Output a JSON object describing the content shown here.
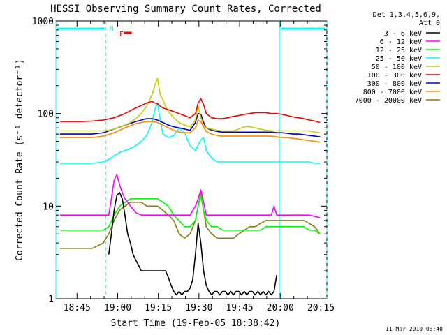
{
  "chart_data": {
    "type": "line",
    "title": "HESSI Observing Summary Count Rates, Corrected",
    "xlabel": "Start Time (19-Feb-05 18:38:42)",
    "ylabel": "Corrected Count Rate (s⁻¹ detector⁻¹)",
    "y_scale": "log",
    "ylim": [
      1,
      1000
    ],
    "xlim_minutes": [
      -1.5,
      98.5
    ],
    "x_ticks": [
      {
        "label": "18:45",
        "t": 6.3
      },
      {
        "label": "19:00",
        "t": 21.3
      },
      {
        "label": "19:15",
        "t": 36.3
      },
      {
        "label": "19:30",
        "t": 51.3
      },
      {
        "label": "19:45",
        "t": 66.3
      },
      {
        "label": "20:00",
        "t": 81.3
      },
      {
        "label": "20:15",
        "t": 96.3
      }
    ],
    "y_ticks": [
      {
        "label": "1",
        "v": 1
      },
      {
        "label": "10",
        "v": 10
      },
      {
        "label": "100",
        "v": 100
      },
      {
        "label": "1000",
        "v": 1000
      }
    ],
    "legend": {
      "header_lines": [
        "Det 1,3,4,5,6,9,",
        "Att 0"
      ],
      "placement": "right"
    },
    "series": [
      {
        "name": "3 - 6 keV",
        "color": "#000000",
        "x": [
          18,
          19,
          20,
          21,
          22,
          23,
          24,
          25,
          26,
          27,
          28,
          29,
          30,
          31,
          32,
          33,
          34,
          35,
          36,
          37,
          38,
          39,
          40,
          41,
          42,
          43,
          44,
          45,
          46,
          47,
          48,
          49,
          50,
          51,
          52,
          53,
          54,
          55,
          56,
          57,
          58,
          59,
          60,
          61,
          62,
          63,
          64,
          65,
          66,
          67,
          68,
          69,
          70,
          71,
          72,
          73,
          74,
          75,
          76,
          77,
          78,
          79,
          80
        ],
        "y": [
          3,
          5,
          9,
          13,
          14,
          12,
          8,
          5,
          4,
          3,
          2.6,
          2.3,
          2,
          2,
          2,
          2,
          2,
          2,
          2,
          2,
          2,
          2,
          1.7,
          1.4,
          1.2,
          1.1,
          1.2,
          1.1,
          1.2,
          1.2,
          1.3,
          1.6,
          3,
          6.5,
          4,
          2,
          1.4,
          1.2,
          1.1,
          1.2,
          1.2,
          1.1,
          1.2,
          1.2,
          1.1,
          1.2,
          1.1,
          1.2,
          1.2,
          1.1,
          1.2,
          1.1,
          1.2,
          1.2,
          1.1,
          1.2,
          1.1,
          1.2,
          1.1,
          1.2,
          1.1,
          1.2,
          1.8
        ]
      },
      {
        "name": "6 - 12 keV",
        "color": "#ff00ff",
        "x": [
          0,
          4,
          8,
          12,
          16,
          18,
          19,
          20,
          21,
          22,
          23,
          24,
          26,
          28,
          30,
          32,
          34,
          36,
          38,
          40,
          42,
          44,
          46,
          48,
          50,
          51,
          52,
          53,
          54,
          56,
          58,
          60,
          62,
          64,
          66,
          68,
          70,
          72,
          74,
          76,
          78,
          79,
          80,
          84,
          88,
          92,
          96
        ],
        "y": [
          8,
          8,
          8,
          8,
          8,
          8,
          12,
          19,
          22,
          17,
          14,
          12,
          10,
          8.5,
          8,
          8,
          8,
          8,
          8,
          8,
          8,
          8,
          8,
          8,
          10,
          12,
          15,
          11,
          8,
          8,
          8,
          8,
          8,
          8,
          8,
          8,
          8,
          8,
          8,
          8,
          8,
          10,
          8,
          8,
          8,
          8,
          7.5
        ]
      },
      {
        "name": "12 - 25 keV",
        "color": "#00ff00",
        "x": [
          0,
          4,
          8,
          12,
          16,
          18,
          20,
          22,
          24,
          26,
          28,
          30,
          32,
          34,
          36,
          38,
          40,
          42,
          44,
          46,
          48,
          50,
          51,
          52,
          53,
          54,
          56,
          58,
          60,
          62,
          64,
          66,
          68,
          70,
          72,
          74,
          76,
          78,
          80,
          82,
          84,
          86,
          88,
          90,
          92,
          94,
          96
        ],
        "y": [
          5.5,
          5.5,
          5.5,
          5.5,
          5.5,
          6,
          8,
          10,
          11,
          12,
          12,
          12,
          12,
          12,
          12,
          11,
          10,
          8,
          7,
          6,
          6,
          7,
          10,
          13,
          9,
          7,
          6,
          6,
          5.5,
          5.5,
          5.5,
          5.5,
          5.5,
          5.5,
          5.5,
          5.5,
          6,
          6,
          6,
          6,
          6,
          6,
          6,
          6,
          5.5,
          5.5,
          5
        ]
      },
      {
        "name": "25 - 50 keV",
        "color": "#00ffff",
        "x": [
          0,
          4,
          8,
          12,
          16,
          18,
          20,
          22,
          24,
          26,
          28,
          30,
          32,
          34,
          35,
          36,
          37,
          38,
          40,
          42,
          44,
          46,
          48,
          50,
          52,
          53,
          54,
          56,
          58,
          60,
          62,
          64,
          66,
          68,
          70,
          72,
          74,
          76,
          78,
          80,
          82,
          84,
          86,
          88,
          90,
          92,
          94,
          96
        ],
        "y": [
          29,
          29,
          29,
          29,
          30,
          32,
          35,
          38,
          40,
          42,
          45,
          50,
          58,
          80,
          110,
          130,
          85,
          60,
          55,
          58,
          70,
          62,
          45,
          40,
          52,
          55,
          40,
          33,
          30,
          30,
          30,
          30,
          30,
          30,
          30,
          30,
          30,
          30,
          30,
          30,
          30,
          30,
          30,
          30,
          30,
          30,
          29,
          29
        ]
      },
      {
        "name": "50 - 100 keV",
        "color": "#cccc00",
        "x": [
          0,
          4,
          8,
          12,
          16,
          18,
          20,
          22,
          24,
          26,
          28,
          30,
          32,
          34,
          35,
          36,
          37,
          38,
          39,
          40,
          42,
          44,
          46,
          48,
          50,
          51,
          52,
          53,
          54,
          56,
          58,
          60,
          62,
          64,
          66,
          68,
          70,
          72,
          74,
          76,
          78,
          80,
          82,
          84,
          86,
          88,
          90,
          92,
          94,
          96
        ],
        "y": [
          65,
          65,
          65,
          65,
          65,
          66,
          68,
          72,
          75,
          80,
          88,
          100,
          120,
          160,
          200,
          240,
          160,
          140,
          120,
          105,
          90,
          80,
          75,
          72,
          85,
          120,
          90,
          75,
          70,
          68,
          66,
          65,
          65,
          65,
          68,
          72,
          72,
          70,
          68,
          66,
          65,
          65,
          65,
          65,
          65,
          65,
          65,
          65,
          63,
          62
        ]
      },
      {
        "name": "100 - 300 keV",
        "color": "#ee0000",
        "x": [
          0,
          4,
          8,
          12,
          16,
          20,
          24,
          28,
          32,
          34,
          35,
          36,
          37,
          38,
          40,
          42,
          44,
          46,
          48,
          50,
          51,
          52,
          53,
          54,
          56,
          58,
          60,
          62,
          64,
          66,
          68,
          70,
          72,
          74,
          76,
          78,
          80,
          82,
          84,
          86,
          88,
          90,
          92,
          94,
          96
        ],
        "y": [
          82,
          82,
          82,
          83,
          85,
          90,
          100,
          115,
          130,
          135,
          130,
          128,
          120,
          115,
          110,
          105,
          100,
          95,
          90,
          100,
          130,
          145,
          125,
          100,
          90,
          88,
          88,
          90,
          93,
          95,
          98,
          100,
          102,
          102,
          102,
          100,
          100,
          98,
          95,
          92,
          90,
          88,
          85,
          83,
          80
        ]
      },
      {
        "name": "300 - 800 keV",
        "color": "#0000cc",
        "x": [
          0,
          4,
          8,
          12,
          16,
          20,
          24,
          28,
          32,
          34,
          36,
          38,
          40,
          42,
          44,
          46,
          48,
          50,
          51,
          52,
          53,
          54,
          56,
          58,
          60,
          62,
          64,
          66,
          68,
          70,
          72,
          74,
          76,
          78,
          80,
          82,
          84,
          86,
          88,
          90,
          92,
          94,
          96
        ],
        "y": [
          60,
          60,
          60,
          60,
          62,
          68,
          75,
          82,
          88,
          88,
          85,
          80,
          75,
          72,
          70,
          68,
          66,
          80,
          100,
          98,
          80,
          70,
          66,
          64,
          63,
          63,
          63,
          63,
          63,
          63,
          63,
          63,
          63,
          63,
          62,
          62,
          61,
          60,
          60,
          59,
          58,
          57,
          56
        ]
      },
      {
        "name": "800 - 7000 keV",
        "color": "#ff8800",
        "x": [
          0,
          4,
          8,
          12,
          16,
          20,
          24,
          28,
          32,
          34,
          36,
          38,
          40,
          42,
          44,
          46,
          48,
          50,
          51,
          52,
          53,
          54,
          56,
          58,
          60,
          62,
          64,
          66,
          68,
          70,
          72,
          74,
          76,
          78,
          80,
          82,
          84,
          86,
          88,
          90,
          92,
          94,
          96
        ],
        "y": [
          55,
          55,
          55,
          55,
          57,
          62,
          70,
          78,
          82,
          82,
          80,
          75,
          70,
          66,
          63,
          62,
          62,
          70,
          85,
          82,
          72,
          64,
          60,
          58,
          57,
          57,
          57,
          57,
          57,
          57,
          57,
          57,
          57,
          57,
          56,
          55,
          55,
          54,
          53,
          52,
          51,
          50,
          49
        ]
      },
      {
        "name": "7000 - 20000 keV",
        "color": "#8b7b10",
        "x": [
          0,
          4,
          8,
          12,
          16,
          18,
          20,
          22,
          24,
          26,
          28,
          30,
          32,
          34,
          36,
          38,
          40,
          42,
          44,
          46,
          48,
          50,
          51,
          52,
          53,
          54,
          56,
          58,
          60,
          62,
          64,
          66,
          68,
          70,
          72,
          74,
          76,
          78,
          80,
          82,
          84,
          86,
          88,
          90,
          92,
          94,
          96
        ],
        "y": [
          3.5,
          3.5,
          3.5,
          3.5,
          4,
          5,
          7,
          9,
          10,
          11,
          11,
          11,
          10,
          10,
          10,
          9,
          8,
          7,
          5,
          4.5,
          5,
          7,
          10,
          14,
          9,
          6,
          5,
          4.5,
          4.5,
          4.5,
          4.5,
          5,
          5.5,
          6,
          6,
          6.5,
          7,
          7,
          7,
          7,
          7,
          7,
          7,
          7,
          6.5,
          6,
          5
        ]
      }
    ],
    "annotations": {
      "bar_labels": [
        "N",
        "F"
      ],
      "bars_color": "#00ffff",
      "flare_bar_color": "#ee0000",
      "saa_bars_minutes": [
        [
          -1.5,
          17
        ],
        [
          81,
          98.5
        ]
      ],
      "night_bar_minutes": [
        23.5,
        26.5
      ],
      "vertical_solid_minutes": [
        -1.5,
        81
      ],
      "vertical_dashed_minutes": [
        17,
        98.5
      ]
    }
  },
  "footer": {
    "timestamp": "11-Mar-2010 03:40"
  }
}
